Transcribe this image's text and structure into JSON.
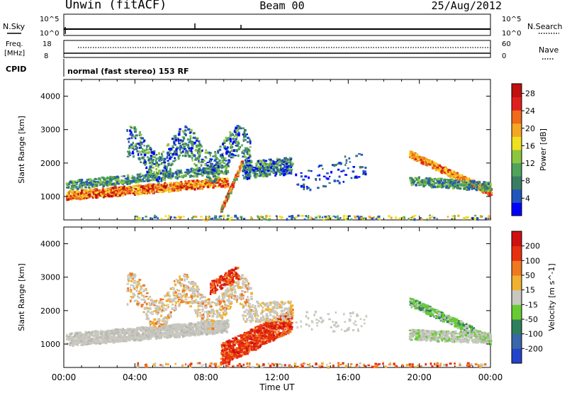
{
  "header": {
    "station": "Unwin (fitACF)",
    "beam": "Beam 00",
    "date": "25/Aug/2012"
  },
  "status_panels": {
    "nsky": {
      "label": "N.Sky",
      "ticks_left": [
        "10^5",
        "10^0"
      ],
      "right_label": "N.Search",
      "ticks_right": [
        "10^5",
        "10^0"
      ]
    },
    "freq": {
      "label_line1": "Freq.",
      "label_line2": "[MHz]",
      "ticks_left": [
        "18",
        "8"
      ],
      "right_label": "Nave",
      "ticks_right": [
        "60",
        "0"
      ]
    },
    "cpid": {
      "label": "CPID",
      "text": "normal (fast stereo) 153 RF"
    }
  },
  "chart_data": [
    {
      "type": "heatmap",
      "id": "power",
      "ylabel": "Slant Range [km]",
      "yticks": [
        "1000",
        "2000",
        "3000",
        "4000"
      ],
      "ylim": [
        300,
        4500
      ],
      "xlim_hours": [
        0,
        24
      ],
      "colorbar": {
        "label": "Power [dB]",
        "ticks": [
          "4",
          "8",
          "12",
          "16",
          "20",
          "24",
          "28"
        ],
        "colors": [
          "#0000ff",
          "#2255bb",
          "#3b7d63",
          "#4fa35a",
          "#8cc63f",
          "#f0e020",
          "#f5a623",
          "#ef6a1a",
          "#e02020",
          "#c01010"
        ]
      }
    },
    {
      "type": "heatmap",
      "id": "velocity",
      "ylabel": "Slant Range [km]",
      "yticks": [
        "1000",
        "2000",
        "3000",
        "4000"
      ],
      "ylim": [
        300,
        4500
      ],
      "xlim_hours": [
        0,
        24
      ],
      "xticks": [
        "00:00",
        "04:00",
        "08:00",
        "12:00",
        "16:00",
        "20:00",
        "00:00"
      ],
      "xlabel": "Time UT",
      "colorbar": {
        "label": "Velocity [m s^-1]",
        "ticks": [
          "200",
          "100",
          "50",
          "15",
          "-15",
          "-50",
          "-100",
          "-200"
        ],
        "colors": [
          "#2244cc",
          "#3a66aa",
          "#2e7f5c",
          "#66cc33",
          "#c8c8c0",
          "#f0b030",
          "#f07820",
          "#e83010",
          "#d01010"
        ]
      }
    }
  ],
  "colors": {
    "ground_scatter": "#c8c8c0"
  }
}
